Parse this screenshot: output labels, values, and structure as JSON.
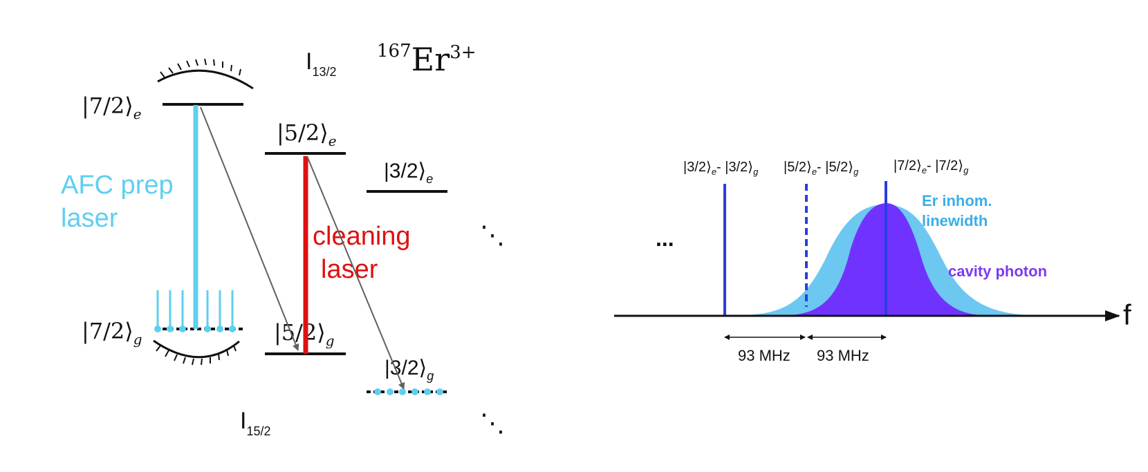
{
  "level_diagram": {
    "species": {
      "mass": "167",
      "element": "Er",
      "charge": "3+"
    },
    "upper_manifold": {
      "main": "I",
      "sub": "13/2"
    },
    "lower_manifold": {
      "main": "I",
      "sub": "15/2"
    },
    "levels": {
      "e72": {
        "ket": "|7/2⟩",
        "sub": "e"
      },
      "e52": {
        "ket": "|5/2⟩",
        "sub": "e"
      },
      "e32": {
        "ket": "|3/2⟩",
        "sub": "e"
      },
      "g72": {
        "ket": "|7/2⟩",
        "sub": "g"
      },
      "g52": {
        "ket": "|5/2⟩",
        "sub": "g"
      },
      "g32": {
        "ket": "|3/2⟩",
        "sub": "g"
      }
    },
    "afc_laser": {
      "line1": "AFC prep",
      "line2": "laser"
    },
    "cleaning_laser": {
      "line1": "cleaning",
      "line2": "laser"
    },
    "ellipsis": "⋱",
    "colors": {
      "afc": "#5ecfef",
      "cleaning": "#e01010",
      "decay": "#606060",
      "level": "#111111"
    }
  },
  "spectrum": {
    "axis_label": "f",
    "ellipsis": "...",
    "transitions": [
      {
        "e": "|3/2⟩",
        "e_sub": "e",
        "g": "|3/2⟩",
        "g_sub": "g",
        "style": "solid"
      },
      {
        "e": "|5/2⟩",
        "e_sub": "e",
        "g": "|5/2⟩",
        "g_sub": "g",
        "style": "dashed"
      },
      {
        "e": "|7/2⟩",
        "e_sub": "e",
        "g": "|7/2⟩",
        "g_sub": "g",
        "style": "solid"
      }
    ],
    "spacing_left": "93 MHz",
    "spacing_right": "93 MHz",
    "inhomogeneous_label": {
      "line1": "Er inhom.",
      "line2": "linewidth"
    },
    "cavity_label": "cavity photon",
    "colors": {
      "inhomogeneous": "#6cc8f0",
      "cavity": "#7033ff",
      "transition": "#2a3ee0",
      "inhom_text": "#3aaee8",
      "cavity_text": "#7a3cf0"
    }
  }
}
